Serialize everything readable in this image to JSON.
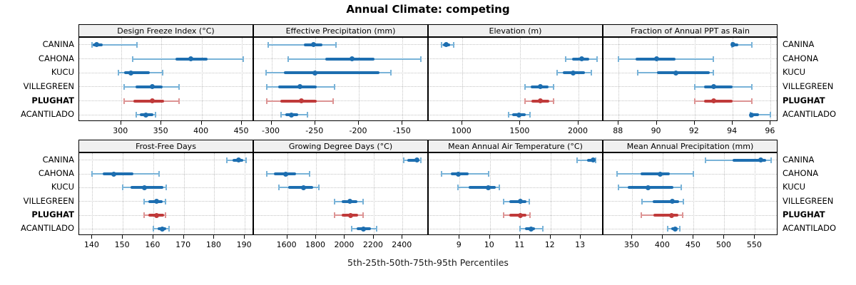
{
  "title": "Annual Climate: competing",
  "xlabel": "5th-25th-50th-75th-95th Percentiles",
  "colors": {
    "blue": "#1d6eb0",
    "blue_light": "#79b3d8",
    "red": "#c03a3a",
    "red_light": "#dd9494",
    "grid": "#c4c4c4",
    "strip_bg": "#f0f0f0",
    "border": "#000000"
  },
  "sites": [
    {
      "name": "CANINA",
      "highlight": false
    },
    {
      "name": "CAHONA",
      "highlight": false
    },
    {
      "name": "KUCU",
      "highlight": false
    },
    {
      "name": "VILLEGREEN",
      "highlight": false
    },
    {
      "name": "PLUGHAT",
      "highlight": true
    },
    {
      "name": "ACANTILADO",
      "highlight": false
    }
  ],
  "percentile_levels": [
    5,
    25,
    50,
    75,
    95
  ],
  "chart_data": [
    {
      "type": "scatter",
      "subtype": "percentile-interval-dotplot",
      "title": "Design Freeze Index (°C)",
      "row": 0,
      "col": 0,
      "xlim": [
        248,
        465
      ],
      "ticks": [
        300,
        350,
        400,
        450
      ],
      "series": [
        {
          "site": "CANINA",
          "p": [
            264,
            265,
            270,
            277,
            320
          ]
        },
        {
          "site": "CAHONA",
          "p": [
            314,
            368,
            387,
            407,
            452
          ]
        },
        {
          "site": "KUCU",
          "p": [
            297,
            304,
            312,
            336,
            352
          ]
        },
        {
          "site": "VILLEGREEN",
          "p": [
            304,
            318,
            339,
            352,
            372
          ]
        },
        {
          "site": "PLUGHAT",
          "p": [
            304,
            315,
            339,
            353,
            372
          ]
        },
        {
          "site": "ACANTILADO",
          "p": [
            319,
            323,
            331,
            340,
            343
          ]
        }
      ]
    },
    {
      "type": "scatter",
      "subtype": "percentile-interval-dotplot",
      "title": "Effective Precipitation (mm)",
      "row": 0,
      "col": 1,
      "xlim": [
        -320,
        -120
      ],
      "ticks": [
        -300,
        -250,
        -200,
        -150
      ],
      "series": [
        {
          "site": "CANINA",
          "p": [
            -304,
            -263,
            -252,
            -242,
            -226
          ]
        },
        {
          "site": "CAHONA",
          "p": [
            -281,
            -238,
            -208,
            -182,
            -129
          ]
        },
        {
          "site": "KUCU",
          "p": [
            -306,
            -286,
            -250,
            -176,
            -163
          ]
        },
        {
          "site": "VILLEGREEN",
          "p": [
            -305,
            -292,
            -267,
            -248,
            -228
          ]
        },
        {
          "site": "PLUGHAT",
          "p": [
            -305,
            -290,
            -266,
            -248,
            -229
          ]
        },
        {
          "site": "ACANTILADO",
          "p": [
            -289,
            -284,
            -277,
            -269,
            -259
          ]
        }
      ]
    },
    {
      "type": "scatter",
      "subtype": "percentile-interval-dotplot",
      "title": "Elevation (m)",
      "row": 0,
      "col": 2,
      "xlim": [
        714,
        2214
      ],
      "ticks": [
        1000,
        1500,
        2000
      ],
      "series": [
        {
          "site": "CANINA",
          "p": [
            822,
            838,
            867,
            898,
            928
          ]
        },
        {
          "site": "CAHONA",
          "p": [
            1888,
            1944,
            2026,
            2092,
            2159
          ]
        },
        {
          "site": "KUCU",
          "p": [
            1816,
            1867,
            1955,
            2054,
            2112
          ]
        },
        {
          "site": "VILLEGREEN",
          "p": [
            1540,
            1591,
            1673,
            1744,
            1785
          ]
        },
        {
          "site": "PLUGHAT",
          "p": [
            1540,
            1595,
            1675,
            1748,
            1785
          ]
        },
        {
          "site": "ACANTILADO",
          "p": [
            1398,
            1432,
            1486,
            1545,
            1581
          ]
        }
      ]
    },
    {
      "type": "scatter",
      "subtype": "percentile-interval-dotplot",
      "title": "Fraction of Annual PPT as Rain",
      "row": 0,
      "col": 3,
      "xlim": [
        87.2,
        96.4
      ],
      "ticks": [
        88,
        90,
        92,
        94,
        96
      ],
      "series": [
        {
          "site": "CANINA",
          "p": [
            93.95,
            94,
            94,
            94.3,
            95
          ]
        },
        {
          "site": "CAHONA",
          "p": [
            88,
            88.9,
            90,
            91,
            93
          ]
        },
        {
          "site": "KUCU",
          "p": [
            89,
            90,
            91,
            92.8,
            93
          ]
        },
        {
          "site": "VILLEGREEN",
          "p": [
            92,
            92.5,
            93,
            94,
            95
          ]
        },
        {
          "site": "PLUGHAT",
          "p": [
            92,
            92.5,
            93,
            94,
            95
          ]
        },
        {
          "site": "ACANTILADO",
          "p": [
            94.92,
            95,
            95,
            95.4,
            96
          ]
        }
      ]
    },
    {
      "type": "scatter",
      "subtype": "percentile-interval-dotplot",
      "title": "Frost-Free Days",
      "row": 1,
      "col": 0,
      "xlim": [
        135.7,
        193
      ],
      "ticks": [
        140,
        150,
        160,
        170,
        180,
        190
      ],
      "series": [
        {
          "site": "CANINA",
          "p": [
            184,
            186,
            188,
            189.5,
            190.4
          ]
        },
        {
          "site": "CAHONA",
          "p": [
            140,
            143.5,
            147,
            153.5,
            162
          ]
        },
        {
          "site": "KUCU",
          "p": [
            150,
            152.5,
            157,
            163.4,
            164.2
          ]
        },
        {
          "site": "VILLEGREEN",
          "p": [
            157,
            158.5,
            161,
            163,
            164
          ]
        },
        {
          "site": "PLUGHAT",
          "p": [
            157,
            158.5,
            161,
            163.5,
            164
          ]
        },
        {
          "site": "ACANTILADO",
          "p": [
            160,
            161.5,
            163,
            164.2,
            165.2
          ]
        }
      ]
    },
    {
      "type": "scatter",
      "subtype": "percentile-interval-dotplot",
      "title": "Growing Degree Days (°C)",
      "row": 1,
      "col": 1,
      "xlim": [
        1369,
        2582
      ],
      "ticks": [
        1600,
        1800,
        2000,
        2200,
        2400
      ],
      "series": [
        {
          "site": "CANINA",
          "p": [
            2408,
            2435,
            2500,
            2520,
            2530
          ]
        },
        {
          "site": "CAHONA",
          "p": [
            1460,
            1510,
            1590,
            1660,
            1755
          ]
        },
        {
          "site": "KUCU",
          "p": [
            1542,
            1608,
            1715,
            1781,
            1818
          ]
        },
        {
          "site": "VILLEGREEN",
          "p": [
            1930,
            1980,
            2037,
            2086,
            2128
          ]
        },
        {
          "site": "PLUGHAT",
          "p": [
            1930,
            1980,
            2040,
            2090,
            2128
          ]
        },
        {
          "site": "ACANTILADO",
          "p": [
            2046,
            2080,
            2131,
            2180,
            2219
          ]
        }
      ]
    },
    {
      "type": "scatter",
      "subtype": "percentile-interval-dotplot",
      "title": "Mean Annual Air Temperature (°C)",
      "row": 1,
      "col": 2,
      "xlim": [
        7.98,
        13.75
      ],
      "ticks": [
        9,
        10,
        11,
        12,
        13
      ],
      "series": [
        {
          "site": "CANINA",
          "p": [
            12.88,
            13.2,
            13.4,
            13.45,
            13.5
          ]
        },
        {
          "site": "CAHONA",
          "p": [
            8.4,
            8.7,
            8.95,
            9.3,
            9.97
          ]
        },
        {
          "site": "KUCU",
          "p": [
            8.95,
            9.3,
            9.95,
            10.2,
            10.3
          ]
        },
        {
          "site": "VILLEGREEN",
          "p": [
            10.45,
            10.65,
            11.0,
            11.2,
            11.3
          ]
        },
        {
          "site": "PLUGHAT",
          "p": [
            10.45,
            10.65,
            11.0,
            11.2,
            11.32
          ]
        },
        {
          "site": "ACANTILADO",
          "p": [
            11.0,
            11.15,
            11.35,
            11.5,
            11.75
          ]
        }
      ]
    },
    {
      "type": "scatter",
      "subtype": "percentile-interval-dotplot",
      "title": "Mean Annual Precipitation (mm)",
      "row": 1,
      "col": 3,
      "xlim": [
        303,
        588
      ],
      "ticks": [
        350,
        400,
        450,
        500,
        550
      ],
      "series": [
        {
          "site": "CANINA",
          "p": [
            469,
            514,
            559,
            568,
            576
          ]
        },
        {
          "site": "CAHONA",
          "p": [
            325,
            363,
            396,
            411,
            450
          ]
        },
        {
          "site": "KUCU",
          "p": [
            327,
            343,
            376,
            417,
            430
          ]
        },
        {
          "site": "VILLEGREEN",
          "p": [
            366,
            383,
            415,
            426,
            433
          ]
        },
        {
          "site": "PLUGHAT",
          "p": [
            365,
            384,
            414,
            425,
            432
          ]
        },
        {
          "site": "ACANTILADO",
          "p": [
            408,
            413,
            420,
            424,
            428
          ]
        }
      ]
    }
  ]
}
